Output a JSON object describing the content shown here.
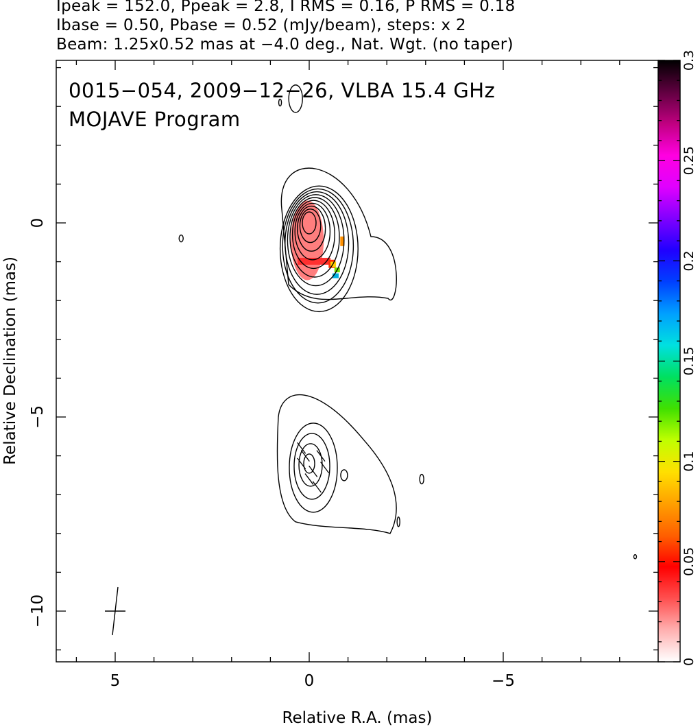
{
  "header": {
    "line1": "Ipeak = 152.0, Ppeak = 2.8, I RMS = 0.16, P RMS = 0.18",
    "line2": "Ibase = 0.50, Pbase = 0.52 (mJy/beam), steps: x 2",
    "line3": "Beam: 1.25x0.52 mas at −4.0 deg., Nat. Wgt. (no taper)"
  },
  "plot_title": {
    "line1": "0015−054, 2009−12−26, VLBA 15.4 GHz",
    "line2": "MOJAVE Program"
  },
  "chart_data": {
    "type": "heatmap",
    "xlabel": "Relative R.A. (mas)",
    "ylabel": "Relative Declination (mas)",
    "xlim": [
      6.2,
      -9.1
    ],
    "ylim": [
      -11.3,
      4.2
    ],
    "x_ticks": [
      5,
      0,
      -5
    ],
    "x_tick_labels": [
      "5",
      "0",
      "−5"
    ],
    "y_ticks": [
      0,
      -5,
      -10
    ],
    "y_tick_labels": [
      "0",
      "−5",
      "−10"
    ],
    "colorbar": {
      "range": [
        0,
        0.3
      ],
      "ticks": [
        0,
        0.05,
        0.1,
        0.15,
        0.2,
        0.25,
        0.3
      ],
      "tick_labels": [
        "0",
        "0.05",
        "0.1",
        "0.15",
        "0.2",
        "0.25",
        "0.3"
      ],
      "colors": [
        "#ffffff",
        "#ffb0b0",
        "#ff5050",
        "#ff0000",
        "#ff6000",
        "#ffa000",
        "#ffe000",
        "#c0ff00",
        "#40e000",
        "#00e060",
        "#00e0e0",
        "#00a0ff",
        "#0040ff",
        "#2000ff",
        "#8000ff",
        "#e000ff",
        "#ff00e0",
        "#c00080",
        "#600040",
        "#000000"
      ]
    },
    "contour_sources": [
      {
        "x": 0.0,
        "y": 0.0,
        "levels": 10
      },
      {
        "x": 0.0,
        "y": -6.2,
        "levels": 4
      }
    ],
    "beam": {
      "major_mas": 1.25,
      "minor_mas": 0.52,
      "pa_deg": -4.0
    }
  }
}
